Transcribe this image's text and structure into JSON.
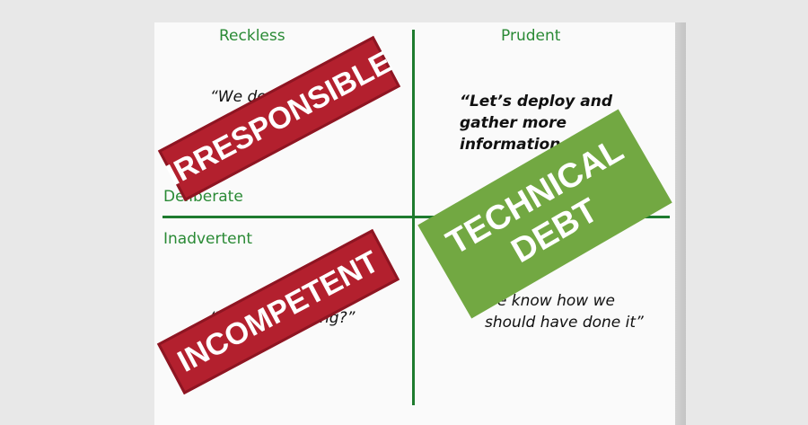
{
  "axes": {
    "top_left": "Reckless",
    "top_right": "Prudent",
    "left_upper": "Deliberate",
    "left_lower": "Inadvertent"
  },
  "quotes": {
    "reckless_deliberate": "“We don’",
    "prudent_deliberate": "“Let’s deploy and\ngather more\ninformation.”",
    "reckless_inadvertent_a": "“W",
    "reckless_inadvertent_b": "ng?”",
    "prudent_inadvertent": "we know how we\nshould have done it”"
  },
  "stamps": {
    "irresponsible": "IRRESPONSIBLE",
    "incompetent": "INCOMPETENT",
    "technical": "TECHNICAL",
    "debt": "DEBT"
  },
  "colors": {
    "axis_green": "#1e7b2e",
    "label_green": "#2a8a35",
    "stamp_red": "#b3202e",
    "stamp_green": "#72a842"
  }
}
